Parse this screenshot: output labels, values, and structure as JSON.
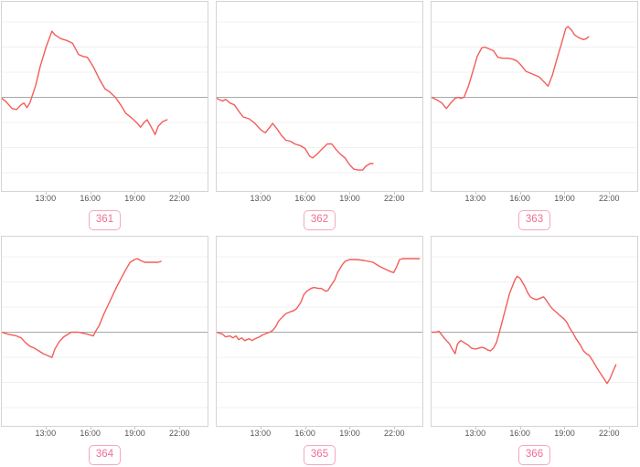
{
  "app": {
    "description": "Dashboard grid of six red time-series sparkline charts, each with a gray zero baseline, faint horizontal gridlines, hourly x-axis ticks and a pink ID badge underneath"
  },
  "chart_grid": {
    "columns": 3,
    "rows": 2,
    "x_axis": {
      "domain_hours": [
        10,
        23.95
      ],
      "ticks": [
        {
          "hour": 13,
          "label": "13:00"
        },
        {
          "hour": 16,
          "label": "16:00"
        },
        {
          "hour": 19,
          "label": "19:00"
        },
        {
          "hour": 22,
          "label": "22:00"
        }
      ]
    },
    "style": {
      "line_color": "#f45c58",
      "baseline_color": "#a8a8a8",
      "grid_color": "#f0f0f0",
      "plot_border_color": "#d4d4d4",
      "tick_color": "#c9c9c9",
      "tick_label_color": "#545454",
      "badge_border_color": "#f5a8bb",
      "badge_text_color": "#ee6e96",
      "background": "#ffffff"
    }
  },
  "chart_data": [
    {
      "id": "361",
      "type": "line",
      "badge_label": "361",
      "x_tick_labels": [
        "13:00",
        "16:00",
        "19:00",
        "22:00"
      ],
      "y_scale": "normalized: 0 = gray baseline, +1 = plot top, -1 = plot bottom",
      "points": [
        [
          10.0,
          -0.01
        ],
        [
          10.3,
          -0.05
        ],
        [
          10.7,
          -0.12
        ],
        [
          11.0,
          -0.13
        ],
        [
          11.3,
          -0.08
        ],
        [
          11.5,
          -0.06
        ],
        [
          11.7,
          -0.11
        ],
        [
          11.9,
          -0.06
        ],
        [
          12.3,
          0.13
        ],
        [
          12.6,
          0.33
        ],
        [
          13.0,
          0.54
        ],
        [
          13.4,
          0.71
        ],
        [
          13.6,
          0.67
        ],
        [
          14.0,
          0.63
        ],
        [
          14.4,
          0.61
        ],
        [
          14.8,
          0.58
        ],
        [
          15.2,
          0.46
        ],
        [
          15.5,
          0.44
        ],
        [
          15.8,
          0.43
        ],
        [
          16.2,
          0.33
        ],
        [
          16.6,
          0.2
        ],
        [
          17.0,
          0.09
        ],
        [
          17.3,
          0.06
        ],
        [
          17.7,
          0.0
        ],
        [
          18.1,
          -0.09
        ],
        [
          18.4,
          -0.17
        ],
        [
          18.8,
          -0.22
        ],
        [
          19.2,
          -0.28
        ],
        [
          19.4,
          -0.32
        ],
        [
          19.7,
          -0.26
        ],
        [
          19.85,
          -0.24
        ],
        [
          20.1,
          -0.31
        ],
        [
          20.4,
          -0.4
        ],
        [
          20.6,
          -0.31
        ],
        [
          20.9,
          -0.26
        ],
        [
          21.2,
          -0.24
        ]
      ]
    },
    {
      "id": "362",
      "type": "line",
      "badge_label": "362",
      "x_tick_labels": [
        "13:00",
        "16:00",
        "19:00",
        "22:00"
      ],
      "y_scale": "normalized: 0 = gray baseline, +1 = plot top, -1 = plot bottom",
      "points": [
        [
          10.0,
          -0.01
        ],
        [
          10.4,
          -0.04
        ],
        [
          10.6,
          -0.02
        ],
        [
          10.9,
          -0.06
        ],
        [
          11.2,
          -0.08
        ],
        [
          11.5,
          -0.15
        ],
        [
          11.8,
          -0.21
        ],
        [
          12.2,
          -0.23
        ],
        [
          12.6,
          -0.28
        ],
        [
          13.0,
          -0.35
        ],
        [
          13.3,
          -0.38
        ],
        [
          13.6,
          -0.32
        ],
        [
          13.8,
          -0.28
        ],
        [
          14.1,
          -0.34
        ],
        [
          14.4,
          -0.41
        ],
        [
          14.7,
          -0.46
        ],
        [
          15.0,
          -0.47
        ],
        [
          15.3,
          -0.5
        ],
        [
          15.7,
          -0.52
        ],
        [
          16.0,
          -0.55
        ],
        [
          16.3,
          -0.63
        ],
        [
          16.5,
          -0.65
        ],
        [
          16.8,
          -0.61
        ],
        [
          17.1,
          -0.56
        ],
        [
          17.5,
          -0.5
        ],
        [
          17.8,
          -0.5
        ],
        [
          18.1,
          -0.56
        ],
        [
          18.4,
          -0.61
        ],
        [
          18.7,
          -0.65
        ],
        [
          19.0,
          -0.72
        ],
        [
          19.3,
          -0.77
        ],
        [
          19.6,
          -0.78
        ],
        [
          19.9,
          -0.78
        ],
        [
          20.1,
          -0.74
        ],
        [
          20.4,
          -0.71
        ],
        [
          20.6,
          -0.71
        ]
      ]
    },
    {
      "id": "363",
      "type": "line",
      "badge_label": "363",
      "x_tick_labels": [
        "13:00",
        "16:00",
        "19:00",
        "22:00"
      ],
      "y_scale": "normalized: 0 = gray baseline, +1 = plot top, -1 = plot bottom",
      "points": [
        [
          10.0,
          0.0
        ],
        [
          10.4,
          -0.03
        ],
        [
          10.7,
          -0.06
        ],
        [
          11.0,
          -0.12
        ],
        [
          11.3,
          -0.06
        ],
        [
          11.6,
          -0.01
        ],
        [
          11.8,
          0.0
        ],
        [
          12.0,
          -0.01
        ],
        [
          12.2,
          0.0
        ],
        [
          12.5,
          0.12
        ],
        [
          12.8,
          0.28
        ],
        [
          13.1,
          0.44
        ],
        [
          13.4,
          0.53
        ],
        [
          13.6,
          0.54
        ],
        [
          13.9,
          0.52
        ],
        [
          14.2,
          0.5
        ],
        [
          14.5,
          0.43
        ],
        [
          14.8,
          0.42
        ],
        [
          15.2,
          0.42
        ],
        [
          15.5,
          0.41
        ],
        [
          15.8,
          0.39
        ],
        [
          16.1,
          0.34
        ],
        [
          16.4,
          0.28
        ],
        [
          16.7,
          0.26
        ],
        [
          17.0,
          0.24
        ],
        [
          17.3,
          0.22
        ],
        [
          17.6,
          0.17
        ],
        [
          17.9,
          0.12
        ],
        [
          18.2,
          0.24
        ],
        [
          18.5,
          0.41
        ],
        [
          18.8,
          0.57
        ],
        [
          19.1,
          0.74
        ],
        [
          19.25,
          0.76
        ],
        [
          19.5,
          0.72
        ],
        [
          19.7,
          0.67
        ],
        [
          20.0,
          0.64
        ],
        [
          20.3,
          0.62
        ],
        [
          20.5,
          0.63
        ],
        [
          20.65,
          0.65
        ]
      ]
    },
    {
      "id": "364",
      "type": "line",
      "badge_label": "364",
      "x_tick_labels": [
        "13:00",
        "16:00",
        "19:00",
        "22:00"
      ],
      "y_scale": "normalized: 0 = gray baseline, +1 = plot top, -1 = plot bottom",
      "points": [
        [
          10.0,
          0.0
        ],
        [
          10.4,
          -0.02
        ],
        [
          10.7,
          -0.03
        ],
        [
          11.0,
          -0.04
        ],
        [
          11.3,
          -0.06
        ],
        [
          11.6,
          -0.11
        ],
        [
          11.9,
          -0.15
        ],
        [
          12.2,
          -0.17
        ],
        [
          12.5,
          -0.2
        ],
        [
          12.8,
          -0.23
        ],
        [
          13.1,
          -0.25
        ],
        [
          13.4,
          -0.27
        ],
        [
          13.6,
          -0.18
        ],
        [
          13.9,
          -0.1
        ],
        [
          14.2,
          -0.05
        ],
        [
          14.5,
          -0.02
        ],
        [
          14.7,
          0.0
        ],
        [
          15.0,
          0.0
        ],
        [
          15.2,
          0.0
        ],
        [
          15.5,
          -0.01
        ],
        [
          15.8,
          -0.02
        ],
        [
          16.0,
          -0.03
        ],
        [
          16.2,
          -0.04
        ],
        [
          16.4,
          0.02
        ],
        [
          16.6,
          0.07
        ],
        [
          16.9,
          0.19
        ],
        [
          17.2,
          0.29
        ],
        [
          17.5,
          0.39
        ],
        [
          17.8,
          0.49
        ],
        [
          18.1,
          0.58
        ],
        [
          18.4,
          0.67
        ],
        [
          18.7,
          0.75
        ],
        [
          19.0,
          0.78
        ],
        [
          19.2,
          0.79
        ],
        [
          19.4,
          0.77
        ],
        [
          19.7,
          0.75
        ],
        [
          20.0,
          0.75
        ],
        [
          20.3,
          0.75
        ],
        [
          20.6,
          0.75
        ],
        [
          20.8,
          0.76
        ]
      ]
    },
    {
      "id": "365",
      "type": "line",
      "badge_label": "365",
      "x_tick_labels": [
        "13:00",
        "16:00",
        "19:00",
        "22:00"
      ],
      "y_scale": "normalized: 0 = gray baseline, +1 = plot top, -1 = plot bottom",
      "points": [
        [
          10.0,
          0.0
        ],
        [
          10.4,
          -0.02
        ],
        [
          10.6,
          -0.05
        ],
        [
          10.9,
          -0.04
        ],
        [
          11.1,
          -0.06
        ],
        [
          11.3,
          -0.04
        ],
        [
          11.5,
          -0.08
        ],
        [
          11.7,
          -0.06
        ],
        [
          11.9,
          -0.09
        ],
        [
          12.2,
          -0.07
        ],
        [
          12.4,
          -0.09
        ],
        [
          12.6,
          -0.07
        ],
        [
          12.9,
          -0.05
        ],
        [
          13.1,
          -0.03
        ],
        [
          13.4,
          -0.01
        ],
        [
          13.6,
          0.0
        ],
        [
          13.8,
          0.02
        ],
        [
          14.0,
          0.06
        ],
        [
          14.2,
          0.12
        ],
        [
          14.5,
          0.17
        ],
        [
          14.7,
          0.2
        ],
        [
          15.0,
          0.22
        ],
        [
          15.2,
          0.23
        ],
        [
          15.4,
          0.25
        ],
        [
          15.7,
          0.32
        ],
        [
          15.9,
          0.4
        ],
        [
          16.1,
          0.44
        ],
        [
          16.4,
          0.47
        ],
        [
          16.6,
          0.48
        ],
        [
          16.9,
          0.47
        ],
        [
          17.1,
          0.47
        ],
        [
          17.4,
          0.44
        ],
        [
          17.55,
          0.45
        ],
        [
          17.75,
          0.5
        ],
        [
          18.0,
          0.56
        ],
        [
          18.2,
          0.64
        ],
        [
          18.5,
          0.72
        ],
        [
          18.7,
          0.76
        ],
        [
          19.0,
          0.78
        ],
        [
          19.5,
          0.78
        ],
        [
          20.0,
          0.77
        ],
        [
          20.6,
          0.75
        ],
        [
          21.0,
          0.71
        ],
        [
          21.4,
          0.68
        ],
        [
          21.8,
          0.65
        ],
        [
          22.0,
          0.64
        ],
        [
          22.2,
          0.7
        ],
        [
          22.4,
          0.78
        ],
        [
          22.6,
          0.79
        ],
        [
          23.0,
          0.79
        ],
        [
          23.4,
          0.79
        ],
        [
          23.75,
          0.79
        ]
      ]
    },
    {
      "id": "366",
      "type": "line",
      "badge_label": "366",
      "x_tick_labels": [
        "13:00",
        "16:00",
        "19:00",
        "22:00"
      ],
      "y_scale": "normalized: 0 = gray baseline, +1 = plot top, -1 = plot bottom",
      "points": [
        [
          10.0,
          0.0
        ],
        [
          10.3,
          0.0
        ],
        [
          10.5,
          0.01
        ],
        [
          10.7,
          -0.03
        ],
        [
          10.9,
          -0.07
        ],
        [
          11.2,
          -0.12
        ],
        [
          11.4,
          -0.18
        ],
        [
          11.6,
          -0.23
        ],
        [
          11.75,
          -0.13
        ],
        [
          11.9,
          -0.1
        ],
        [
          12.0,
          -0.09
        ],
        [
          12.2,
          -0.11
        ],
        [
          12.5,
          -0.14
        ],
        [
          12.7,
          -0.17
        ],
        [
          13.0,
          -0.18
        ],
        [
          13.2,
          -0.17
        ],
        [
          13.4,
          -0.16
        ],
        [
          13.6,
          -0.17
        ],
        [
          13.8,
          -0.19
        ],
        [
          14.0,
          -0.2
        ],
        [
          14.2,
          -0.17
        ],
        [
          14.4,
          -0.11
        ],
        [
          14.55,
          -0.03
        ],
        [
          14.7,
          0.06
        ],
        [
          14.9,
          0.18
        ],
        [
          15.1,
          0.3
        ],
        [
          15.3,
          0.42
        ],
        [
          15.5,
          0.5
        ],
        [
          15.65,
          0.56
        ],
        [
          15.8,
          0.6
        ],
        [
          16.0,
          0.58
        ],
        [
          16.15,
          0.54
        ],
        [
          16.3,
          0.5
        ],
        [
          16.5,
          0.43
        ],
        [
          16.7,
          0.38
        ],
        [
          16.9,
          0.36
        ],
        [
          17.1,
          0.35
        ],
        [
          17.3,
          0.36
        ],
        [
          17.45,
          0.37
        ],
        [
          17.6,
          0.38
        ],
        [
          17.75,
          0.35
        ],
        [
          18.0,
          0.29
        ],
        [
          18.2,
          0.25
        ],
        [
          18.5,
          0.21
        ],
        [
          18.7,
          0.18
        ],
        [
          19.0,
          0.14
        ],
        [
          19.2,
          0.1
        ],
        [
          19.35,
          0.05
        ],
        [
          19.6,
          -0.01
        ],
        [
          19.8,
          -0.07
        ],
        [
          20.1,
          -0.14
        ],
        [
          20.3,
          -0.2
        ],
        [
          20.5,
          -0.23
        ],
        [
          20.7,
          -0.25
        ],
        [
          20.95,
          -0.31
        ],
        [
          21.2,
          -0.38
        ],
        [
          21.45,
          -0.44
        ],
        [
          21.7,
          -0.5
        ],
        [
          21.9,
          -0.55
        ],
        [
          22.1,
          -0.5
        ],
        [
          22.3,
          -0.42
        ],
        [
          22.5,
          -0.35
        ]
      ]
    }
  ]
}
